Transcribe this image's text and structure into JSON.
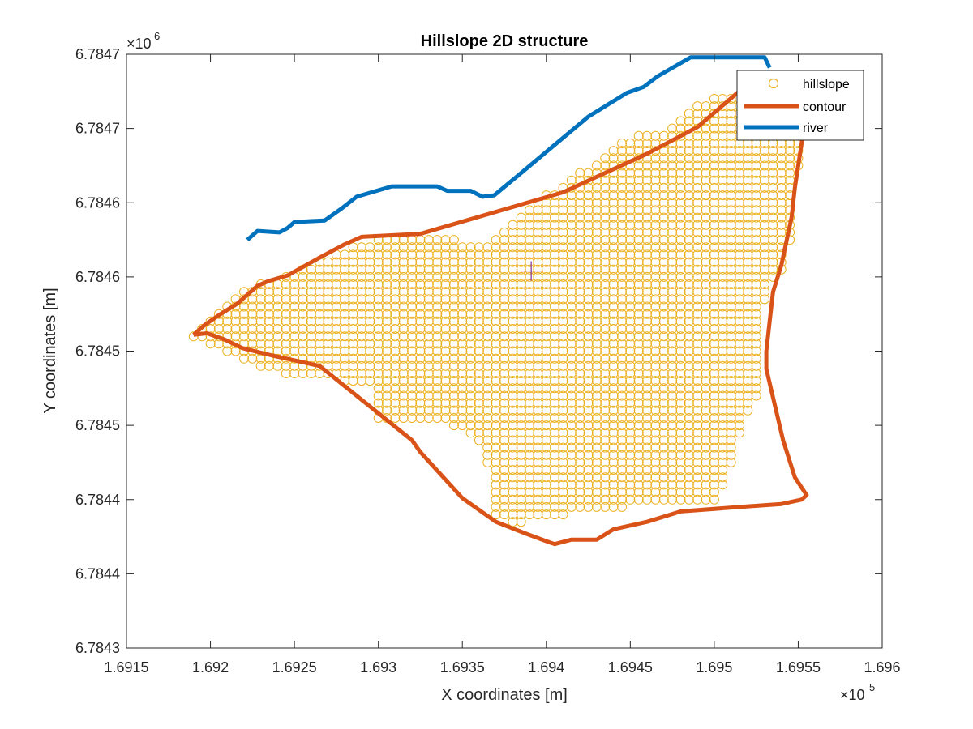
{
  "chart_data": {
    "type": "scatter",
    "title": "Hillslope 2D structure",
    "xlabel": "X coordinates [m]",
    "ylabel": "Y coordinates [m]",
    "x_scale_label": "×10",
    "x_scale_exp": "5",
    "y_scale_label": "×10",
    "y_scale_exp": "6",
    "xlim": [
      169150,
      169600
    ],
    "ylim": [
      6784300,
      6784700
    ],
    "x_ticks": [
      169150,
      169200,
      169250,
      169300,
      169350,
      169400,
      169450,
      169500,
      169550,
      169600
    ],
    "x_tick_labels": [
      "1.6915",
      "1.692",
      "1.6925",
      "1.693",
      "1.6935",
      "1.694",
      "1.6945",
      "1.695",
      "1.6955",
      "1.696"
    ],
    "y_ticks": [
      6784300,
      6784350,
      6784400,
      6784450,
      6784500,
      6784550,
      6784600,
      6784650,
      6784700
    ],
    "y_tick_labels": [
      "6.7843",
      "6.7844",
      "6.7844",
      "6.7845",
      "6.7845",
      "6.7846",
      "6.7846",
      "6.7847",
      "6.7847"
    ],
    "grid": false,
    "legend_placement": "top-right",
    "colors": {
      "hillslope": "#EDB120",
      "contour": "#D95319",
      "river": "#0072BD",
      "centroid": "#7E2F8E"
    },
    "series": [
      {
        "name": "hillslope",
        "kind": "markers",
        "grid_spacing": 5,
        "fill_polygon": [
          [
            169189,
            6784512
          ],
          [
            169199,
            6784524
          ],
          [
            169211,
            6784534
          ],
          [
            169222,
            6784543
          ],
          [
            169234,
            6784546
          ],
          [
            169245,
            6784551
          ],
          [
            169258,
            6784557
          ],
          [
            169270,
            6784564
          ],
          [
            169281,
            6784570
          ],
          [
            169300,
            6784576
          ],
          [
            169318,
            6784576
          ],
          [
            169335,
            6784576
          ],
          [
            169343,
            6784576
          ],
          [
            169355,
            6784573
          ],
          [
            169363,
            6784573
          ],
          [
            169377,
            6784584
          ],
          [
            169391,
            6784597
          ],
          [
            169400,
            6784606
          ],
          [
            169418,
            6784619
          ],
          [
            169432,
            6784629
          ],
          [
            169445,
            6784640
          ],
          [
            169455,
            6784645
          ],
          [
            169467,
            6784647
          ],
          [
            169478,
            6784655
          ],
          [
            169490,
            6784665
          ],
          [
            169500,
            6784673
          ],
          [
            169510,
            6784674
          ],
          [
            169520,
            6784673
          ],
          [
            169527,
            6784672
          ],
          [
            169537,
            6784665
          ],
          [
            169550,
            6784650
          ],
          [
            169552,
            6784635
          ],
          [
            169550,
            6784620
          ],
          [
            169550,
            6784602
          ],
          [
            169549,
            6784590
          ],
          [
            169546,
            6784575
          ],
          [
            169541,
            6784555
          ],
          [
            169532,
            6784542
          ],
          [
            169528,
            6784525
          ],
          [
            169527,
            6784510
          ],
          [
            169527,
            6784490
          ],
          [
            169527,
            6784470
          ],
          [
            169520,
            6784455
          ],
          [
            169515,
            6784440
          ],
          [
            169510,
            6784420
          ],
          [
            169505,
            6784405
          ],
          [
            169505,
            6784400
          ],
          [
            169489,
            6784399
          ],
          [
            169458,
            6784396
          ],
          [
            169432,
            6784393
          ],
          [
            169408,
            6784389
          ],
          [
            169390,
            6784385
          ],
          [
            169378,
            6784385
          ],
          [
            169366,
            6784388
          ],
          [
            169370,
            6784394
          ],
          [
            169363,
            6784434
          ],
          [
            169340,
            6784454
          ],
          [
            169318,
            6784454
          ],
          [
            169300,
            6784454
          ],
          [
            169300,
            6784480
          ],
          [
            169276,
            6784480
          ],
          [
            169252,
            6784482
          ],
          [
            169234,
            6784487
          ],
          [
            169219,
            6784494
          ],
          [
            169207,
            6784500
          ],
          [
            169198,
            6784505
          ],
          [
            169189,
            6784508
          ]
        ]
      },
      {
        "name": "contour",
        "kind": "line",
        "points": [
          [
            169190,
            6784511
          ],
          [
            169197,
            6784518
          ],
          [
            169206,
            6784525
          ],
          [
            169216,
            6784532
          ],
          [
            169228,
            6784544
          ],
          [
            169234,
            6784547
          ],
          [
            169246,
            6784551
          ],
          [
            169265,
            6784563
          ],
          [
            169280,
            6784572
          ],
          [
            169290,
            6784577
          ],
          [
            169325,
            6784579
          ],
          [
            169410,
            6784607
          ],
          [
            169460,
            6784633
          ],
          [
            169490,
            6784651
          ],
          [
            169520,
            6784680
          ],
          [
            169539,
            6784675
          ],
          [
            169555,
            6784661
          ],
          [
            169552,
            6784640
          ],
          [
            169548,
            6784610
          ],
          [
            169546,
            6784590
          ],
          [
            169540,
            6784558
          ],
          [
            169535,
            6784540
          ],
          [
            169533,
            6784520
          ],
          [
            169531,
            6784500
          ],
          [
            169531,
            6784488
          ],
          [
            169541,
            6784440
          ],
          [
            169548,
            6784415
          ],
          [
            169555,
            6784403
          ],
          [
            169552,
            6784400
          ],
          [
            169540,
            6784397
          ],
          [
            169515,
            6784395
          ],
          [
            169480,
            6784392
          ],
          [
            169460,
            6784385
          ],
          [
            169440,
            6784380
          ],
          [
            169430,
            6784373
          ],
          [
            169415,
            6784373
          ],
          [
            169405,
            6784370
          ],
          [
            169400,
            6784372
          ],
          [
            169388,
            6784377
          ],
          [
            169370,
            6784385
          ],
          [
            169350,
            6784401
          ],
          [
            169325,
            6784432
          ],
          [
            169320,
            6784440
          ],
          [
            169265,
            6784490
          ],
          [
            169237,
            6784497
          ],
          [
            169219,
            6784502
          ],
          [
            169208,
            6784508
          ],
          [
            169198,
            6784512
          ],
          [
            169190,
            6784511
          ]
        ]
      },
      {
        "name": "river",
        "kind": "line",
        "points": [
          [
            169222,
            6784575
          ],
          [
            169228,
            6784581
          ],
          [
            169241,
            6784580
          ],
          [
            169246,
            6784583
          ],
          [
            169250,
            6784587
          ],
          [
            169268,
            6784588
          ],
          [
            169278,
            6784596
          ],
          [
            169287,
            6784604
          ],
          [
            169308,
            6784611
          ],
          [
            169335,
            6784611
          ],
          [
            169341,
            6784608
          ],
          [
            169355,
            6784608
          ],
          [
            169362,
            6784604
          ],
          [
            169369,
            6784605
          ],
          [
            169386,
            6784621
          ],
          [
            169405,
            6784639
          ],
          [
            169425,
            6784658
          ],
          [
            169448,
            6784674
          ],
          [
            169458,
            6784678
          ],
          [
            169466,
            6784685
          ],
          [
            169486,
            6784698
          ],
          [
            169530,
            6784698
          ],
          [
            169533,
            6784691
          ]
        ]
      },
      {
        "name": "centroid",
        "kind": "marker",
        "points": [
          [
            169391,
            6784554
          ]
        ]
      }
    ],
    "legend": [
      {
        "label": "hillslope",
        "key": "hillslope"
      },
      {
        "label": "contour",
        "key": "contour"
      },
      {
        "label": "river",
        "key": "river"
      }
    ]
  }
}
